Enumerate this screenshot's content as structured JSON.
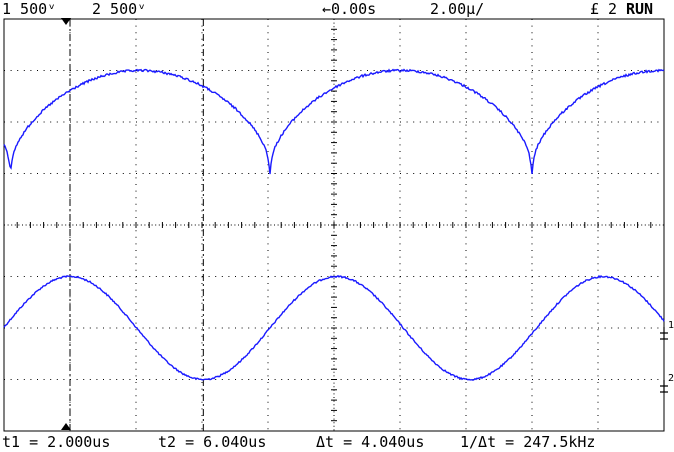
{
  "status_bar": {
    "ch1_scale": "1 500ᵛ",
    "ch2_scale": "2 500ᵛ",
    "time_offset": "←0.00s",
    "time_scale": "2.00µ/",
    "trigger": "£ 2",
    "run_state": "RUN"
  },
  "cursor_readout": {
    "t1": "t1 = 2.000us",
    "t2": "t2 = 6.040us",
    "dt": "Δt = 4.040us",
    "inv_dt": "1/Δt = 247.5kHz"
  },
  "markers": {
    "ch1": "1",
    "ch2": "2"
  },
  "colors": {
    "trace": "#1a1aff",
    "grid": "#000000",
    "background": "#ffffff"
  },
  "chart_data": {
    "type": "line",
    "x_unit": "us",
    "x_divisions": 10,
    "y_divisions": 8,
    "time_per_div": 2.0,
    "cursors": {
      "t1": 2.0,
      "t2": 6.04
    },
    "series": [
      {
        "name": "1",
        "shape": "sine",
        "period_us": 8.08,
        "peak_us": 2.0,
        "amplitude_div": 1.0,
        "center_div": -2.0
      },
      {
        "name": "2",
        "shape": "rectified-sine-dips",
        "dip_times_us": [
          0.2,
          8.06,
          16.0
        ],
        "top_div": 3.0,
        "dip_div": 1.1
      }
    ]
  }
}
